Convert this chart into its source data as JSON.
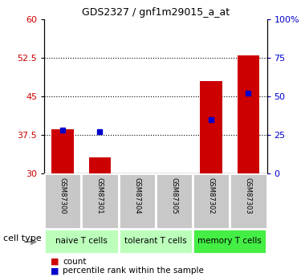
{
  "title": "GDS2327 / gnf1m29015_a_at",
  "samples": [
    "GSM87300",
    "GSM87301",
    "GSM87304",
    "GSM87305",
    "GSM87302",
    "GSM87303"
  ],
  "count_values": [
    38.5,
    33.0,
    30.0,
    30.0,
    48.0,
    53.0
  ],
  "percentile_values": [
    28,
    27,
    0,
    0,
    35,
    52
  ],
  "ylim_left": [
    30,
    60
  ],
  "ylim_right": [
    0,
    100
  ],
  "yticks_left": [
    30,
    37.5,
    45,
    52.5,
    60
  ],
  "yticks_right": [
    0,
    25,
    50,
    75,
    100
  ],
  "yticklabels_right": [
    "0",
    "25",
    "50",
    "75",
    "100%"
  ],
  "bar_color": "#cc0000",
  "dot_color": "#0000cc",
  "baseline": 30,
  "left_tick_color": "#cc0000",
  "right_tick_color": "#0000cc",
  "cell_type_label": "cell type",
  "legend_count": "count",
  "legend_percentile": "percentile rank within the sample",
  "sample_box_color": "#c8c8c8",
  "group_info": [
    {
      "label": "naive T cells",
      "start": 0,
      "end": 2,
      "color": "#bbffbb"
    },
    {
      "label": "tolerant T cells",
      "start": 2,
      "end": 4,
      "color": "#bbffbb"
    },
    {
      "label": "memory T cells",
      "start": 4,
      "end": 6,
      "color": "#44ee44"
    }
  ],
  "dotted_yticks": [
    37.5,
    45,
    52.5
  ],
  "title_fontsize": 9,
  "tick_fontsize": 8,
  "sample_fontsize": 6,
  "group_fontsize": 7.5,
  "legend_fontsize": 7.5
}
